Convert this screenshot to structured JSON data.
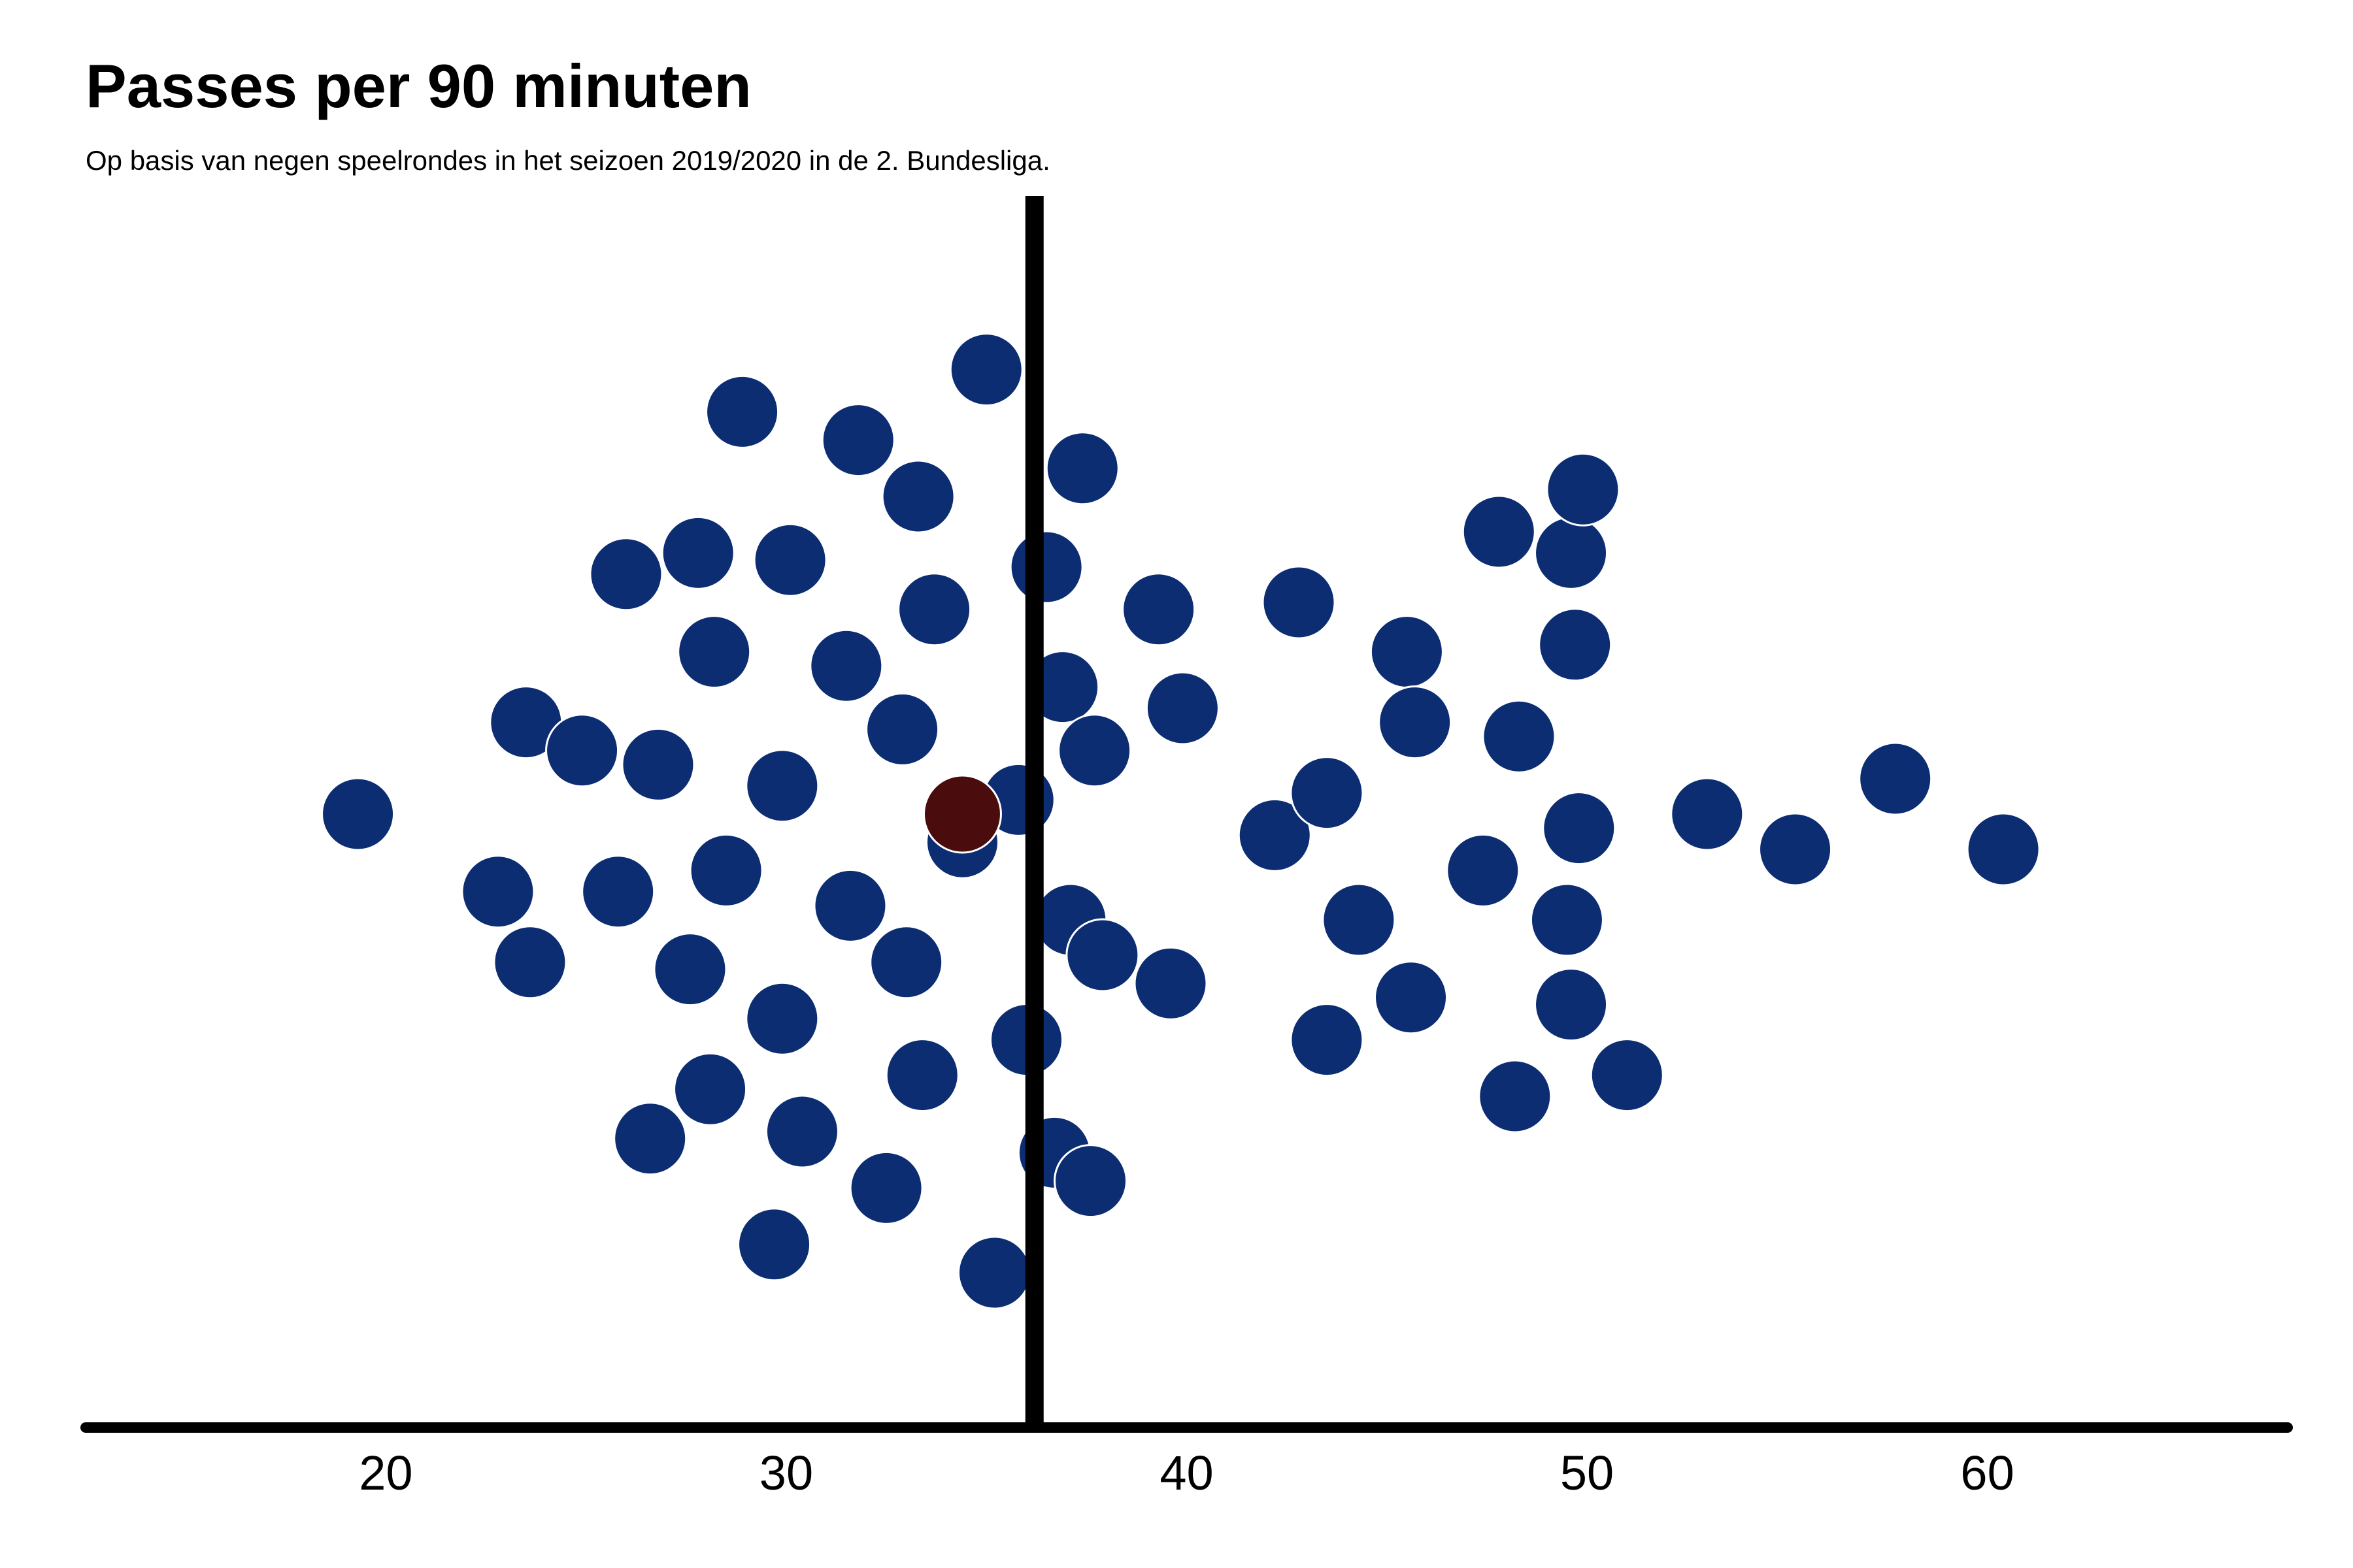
{
  "header": {
    "title": "Passes per 90 minuten",
    "subtitle": "Op basis van negen speelrondes in het seizoen 2019/2020 in de 2. Bundesliga."
  },
  "chart_data": {
    "type": "scatter",
    "title": "Passes per 90 minuten",
    "subtitle": "Op basis van negen speelrondes in het seizoen 2019/2020 in de 2. Bundesliga.",
    "xlabel": "",
    "ylabel": "",
    "xlim": [
      12.5,
      67.5
    ],
    "ylim": [
      -1,
      1
    ],
    "x_ticks": [
      20,
      30,
      40,
      50,
      60
    ],
    "x_tick_labels": [
      "20",
      "30",
      "40",
      "50",
      "60"
    ],
    "reference_line_x": 36.2,
    "colors": {
      "points": "#0c2d72",
      "highlight": "#4a0c0c",
      "axis": "#000000"
    },
    "grid": false,
    "legend": "none",
    "highlight": {
      "x": 34.4,
      "y": 0.0
    },
    "points": [
      {
        "x": 19.3,
        "y": 0.0
      },
      {
        "x": 22.8,
        "y": -0.11
      },
      {
        "x": 23.5,
        "y": 0.13
      },
      {
        "x": 23.6,
        "y": -0.21
      },
      {
        "x": 24.9,
        "y": 0.09
      },
      {
        "x": 25.8,
        "y": -0.11
      },
      {
        "x": 26.0,
        "y": 0.34
      },
      {
        "x": 26.6,
        "y": -0.46
      },
      {
        "x": 26.8,
        "y": 0.07
      },
      {
        "x": 27.6,
        "y": -0.22
      },
      {
        "x": 27.8,
        "y": 0.37
      },
      {
        "x": 28.1,
        "y": -0.39
      },
      {
        "x": 28.2,
        "y": 0.23
      },
      {
        "x": 28.5,
        "y": -0.08
      },
      {
        "x": 28.9,
        "y": 0.57
      },
      {
        "x": 29.7,
        "y": -0.61
      },
      {
        "x": 29.9,
        "y": -0.29
      },
      {
        "x": 29.9,
        "y": 0.04
      },
      {
        "x": 30.1,
        "y": 0.36
      },
      {
        "x": 30.4,
        "y": -0.45
      },
      {
        "x": 31.5,
        "y": 0.21
      },
      {
        "x": 31.6,
        "y": -0.13
      },
      {
        "x": 31.8,
        "y": 0.53
      },
      {
        "x": 32.5,
        "y": -0.53
      },
      {
        "x": 32.9,
        "y": 0.12
      },
      {
        "x": 33.0,
        "y": -0.21
      },
      {
        "x": 33.3,
        "y": 0.45
      },
      {
        "x": 33.4,
        "y": -0.37
      },
      {
        "x": 33.7,
        "y": 0.29
      },
      {
        "x": 34.4,
        "y": -0.04
      },
      {
        "x": 35.0,
        "y": 0.63
      },
      {
        "x": 35.2,
        "y": -0.65
      },
      {
        "x": 35.8,
        "y": 0.02
      },
      {
        "x": 36.0,
        "y": -0.32
      },
      {
        "x": 36.5,
        "y": 0.35
      },
      {
        "x": 36.7,
        "y": -0.48
      },
      {
        "x": 36.9,
        "y": 0.18
      },
      {
        "x": 37.1,
        "y": -0.15
      },
      {
        "x": 37.4,
        "y": 0.49
      },
      {
        "x": 37.6,
        "y": -0.52
      },
      {
        "x": 37.7,
        "y": 0.09
      },
      {
        "x": 37.9,
        "y": -0.2
      },
      {
        "x": 39.3,
        "y": 0.29
      },
      {
        "x": 39.6,
        "y": -0.24
      },
      {
        "x": 39.9,
        "y": 0.15
      },
      {
        "x": 42.2,
        "y": -0.03
      },
      {
        "x": 42.8,
        "y": 0.3
      },
      {
        "x": 43.5,
        "y": 0.03
      },
      {
        "x": 43.5,
        "y": -0.32
      },
      {
        "x": 44.3,
        "y": -0.15
      },
      {
        "x": 45.5,
        "y": 0.23
      },
      {
        "x": 45.6,
        "y": -0.26
      },
      {
        "x": 45.7,
        "y": 0.13
      },
      {
        "x": 47.4,
        "y": -0.08
      },
      {
        "x": 47.8,
        "y": 0.4
      },
      {
        "x": 48.2,
        "y": -0.4
      },
      {
        "x": 48.3,
        "y": 0.11
      },
      {
        "x": 49.5,
        "y": -0.15
      },
      {
        "x": 49.6,
        "y": -0.27
      },
      {
        "x": 49.6,
        "y": 0.37
      },
      {
        "x": 49.7,
        "y": 0.24
      },
      {
        "x": 49.8,
        "y": -0.02
      },
      {
        "x": 49.9,
        "y": 0.46
      },
      {
        "x": 51.0,
        "y": -0.37
      },
      {
        "x": 53.0,
        "y": 0.0
      },
      {
        "x": 55.2,
        "y": -0.05
      },
      {
        "x": 57.7,
        "y": 0.05
      },
      {
        "x": 60.4,
        "y": -0.05
      }
    ]
  }
}
